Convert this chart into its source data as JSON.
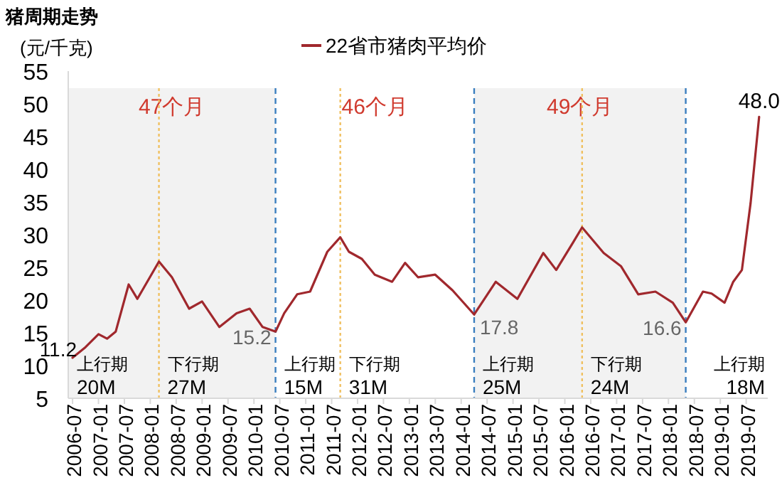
{
  "chart_data": {
    "type": "line",
    "title": "猪周期走势",
    "ylabel": "(元/千克)",
    "legend": "top",
    "x": [
      "2006-07",
      "2006-10",
      "2007-01",
      "2007-03",
      "2007-05",
      "2007-08",
      "2007-10",
      "2008-03",
      "2008-06",
      "2008-10",
      "2009-01",
      "2009-05",
      "2009-09",
      "2009-12",
      "2010-03",
      "2010-06",
      "2010-08",
      "2010-11",
      "2011-02",
      "2011-06",
      "2011-09",
      "2011-11",
      "2012-02",
      "2012-05",
      "2012-09",
      "2012-12",
      "2013-03",
      "2013-07",
      "2013-11",
      "2014-04",
      "2014-09",
      "2015-02",
      "2015-08",
      "2015-11",
      "2016-03",
      "2016-05",
      "2016-10",
      "2017-02",
      "2017-06",
      "2017-10",
      "2018-02",
      "2018-05",
      "2018-09",
      "2018-11",
      "2019-02",
      "2019-04",
      "2019-06",
      "2019-08",
      "2019-10"
    ],
    "series": [
      {
        "name": "22省市猪肉平均价",
        "color": "#a0282d",
        "values": [
          11.2,
          12.8,
          14.8,
          14.1,
          15.2,
          22.4,
          20.2,
          25.9,
          23.5,
          18.7,
          19.8,
          15.9,
          18.0,
          18.7,
          15.9,
          15.2,
          18.0,
          20.9,
          21.3,
          27.4,
          29.6,
          27.4,
          26.3,
          23.9,
          22.8,
          25.7,
          23.5,
          23.9,
          21.5,
          17.8,
          22.8,
          20.2,
          27.2,
          24.6,
          28.9,
          31.1,
          27.2,
          25.2,
          20.9,
          21.3,
          19.6,
          16.6,
          21.3,
          21.0,
          19.6,
          22.8,
          24.6,
          34.8,
          48.0
        ],
        "value_labels": [
          "11.2",
          null,
          null,
          null,
          null,
          null,
          null,
          null,
          null,
          null,
          null,
          null,
          null,
          null,
          null,
          "15.2",
          null,
          null,
          null,
          null,
          null,
          null,
          null,
          null,
          null,
          null,
          null,
          null,
          null,
          "17.8",
          null,
          null,
          null,
          null,
          null,
          null,
          null,
          null,
          null,
          null,
          null,
          "16.6",
          null,
          null,
          null,
          null,
          null,
          null,
          "48.0"
        ]
      }
    ],
    "xlim": [
      "2006-06",
      "2019-12"
    ],
    "xticks": [
      "2006-07",
      "2007-01",
      "2007-07",
      "2008-01",
      "2008-07",
      "2009-01",
      "2009-07",
      "2010-01",
      "2010-07",
      "2011-01",
      "2011-07",
      "2012-01",
      "2012-07",
      "2013-01",
      "2013-07",
      "2014-01",
      "2014-07",
      "2015-01",
      "2015-07",
      "2016-01",
      "2016-07",
      "2017-01",
      "2017-07",
      "2018-01",
      "2018-07",
      "2019-01",
      "2019-07"
    ],
    "ylim": [
      5,
      55
    ],
    "yticks": [
      5,
      10,
      15,
      20,
      25,
      30,
      35,
      40,
      45,
      50,
      55
    ],
    "bands": [
      {
        "axis": "x",
        "from": "2006-06",
        "to": "2010-06",
        "label": "47个月",
        "color": "#f2f2f2"
      },
      {
        "axis": "x",
        "from": "2014-04",
        "to": "2018-05",
        "label": "49个月",
        "color": "#f2f2f2"
      }
    ],
    "ref_lines": [
      {
        "axis": "x",
        "value": "2010-06",
        "color": "#3a7ebf",
        "line_style": "dashed"
      },
      {
        "axis": "x",
        "value": "2014-04",
        "color": "#3a7ebf",
        "line_style": "dashed"
      },
      {
        "axis": "x",
        "value": "2018-05",
        "color": "#3a7ebf",
        "line_style": "dashed"
      },
      {
        "axis": "x",
        "value": "2008-03",
        "color": "#f0c060",
        "line_style": "dotted"
      },
      {
        "axis": "x",
        "value": "2011-09",
        "color": "#f0c060",
        "line_style": "dotted"
      },
      {
        "axis": "x",
        "value": "2016-05",
        "color": "#f0c060",
        "line_style": "dotted"
      }
    ],
    "annotations": [
      "上行期\n20M",
      "下行期\n27M",
      "上行期\n15M",
      "下行期\n31M",
      "上行期\n25M",
      "下行期\n24M",
      "上行期\n18M",
      "46个月"
    ]
  }
}
